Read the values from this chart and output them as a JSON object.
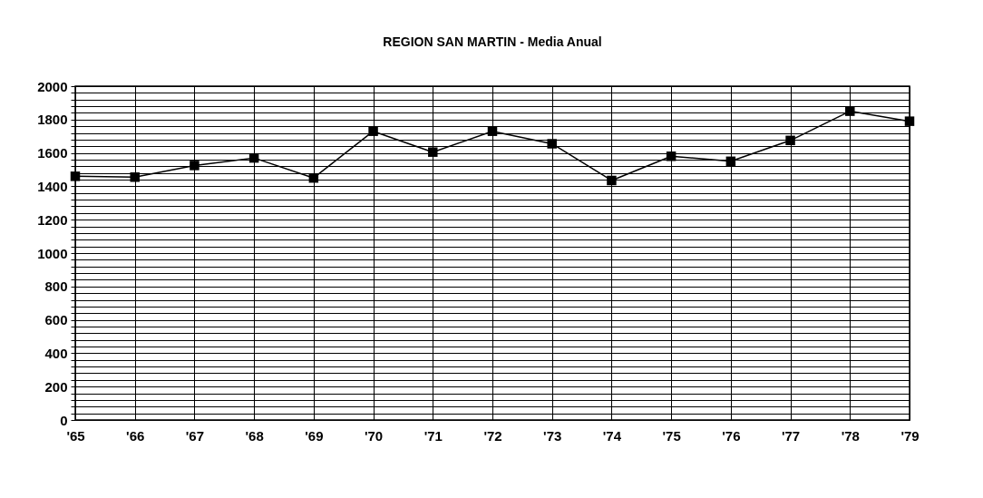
{
  "chart_data": {
    "type": "line",
    "title": "REGION SAN MARTIN - Media Anual",
    "categories": [
      "'65",
      "'66",
      "'67",
      "'68",
      "'69",
      "'70",
      "'71",
      "'72",
      "'73",
      "'74",
      "'75",
      "'76",
      "'77",
      "'78",
      "'79"
    ],
    "series": [
      {
        "color": "#000000",
        "values": [
          1460,
          1455,
          1525,
          1570,
          1450,
          1730,
          1605,
          1730,
          1655,
          1435,
          1580,
          1550,
          1675,
          1850,
          1790
        ]
      }
    ],
    "ylim": [
      0,
      2000
    ],
    "yticks": [
      0,
      {
        "value": 40,
        "label": null
      },
      {
        "value": 80,
        "label": null
      },
      {
        "value": 120,
        "label": null
      },
      {
        "value": 160,
        "label": null
      },
      200,
      {
        "value": 240,
        "label": null
      },
      {
        "value": 280,
        "label": null
      },
      {
        "value": 320,
        "label": null
      },
      {
        "value": 360,
        "label": null
      },
      400,
      {
        "value": 440,
        "label": null
      },
      {
        "value": 480,
        "label": null
      },
      {
        "value": 520,
        "label": null
      },
      {
        "value": 560,
        "label": null
      },
      600,
      {
        "value": 640,
        "label": null
      },
      {
        "value": 680,
        "label": null
      },
      {
        "value": 720,
        "label": null
      },
      {
        "value": 760,
        "label": null
      },
      800,
      {
        "value": 840,
        "label": null
      },
      {
        "value": 880,
        "label": null
      },
      {
        "value": 920,
        "label": null
      },
      {
        "value": 960,
        "label": null
      },
      1000,
      {
        "value": 1040,
        "label": null
      },
      {
        "value": 1080,
        "label": null
      },
      {
        "value": 1120,
        "label": null
      },
      {
        "value": 1160,
        "label": null
      },
      1200,
      {
        "value": 1240,
        "label": null
      },
      {
        "value": 1280,
        "label": null
      },
      {
        "value": 1320,
        "label": null
      },
      {
        "value": 1360,
        "label": null
      },
      1400,
      {
        "value": 1440,
        "label": null
      },
      {
        "value": 1480,
        "label": null
      },
      {
        "value": 1520,
        "label": null
      },
      {
        "value": 1560,
        "label": null
      },
      1600,
      {
        "value": 1640,
        "label": null
      },
      {
        "value": 1680,
        "label": null
      },
      {
        "value": 1720,
        "label": null
      },
      {
        "value": 1760,
        "label": null
      },
      1800,
      {
        "value": 1840,
        "label": null
      },
      {
        "value": 1880,
        "label": null
      },
      {
        "value": 1920,
        "label": null
      },
      {
        "value": 1960,
        "label": null
      },
      2000
    ],
    "grid": true,
    "marker": "square",
    "line_style": "solid",
    "legend": false
  }
}
